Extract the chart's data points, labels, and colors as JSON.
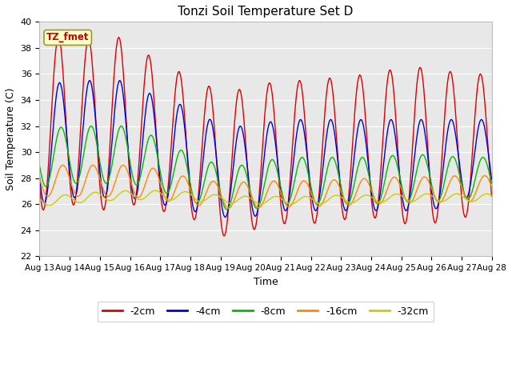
{
  "title": "Tonzi Soil Temperature Set D",
  "xlabel": "Time",
  "ylabel": "Soil Temperature (C)",
  "annotation_text": "TZ_fmet",
  "ylim": [
    22,
    40
  ],
  "series_labels": [
    "-2cm",
    "-4cm",
    "-8cm",
    "-16cm",
    "-32cm"
  ],
  "series_colors": [
    "#dd0000",
    "#0000dd",
    "#00bb00",
    "#ff8800",
    "#cccc00"
  ],
  "x_tick_labels": [
    "Aug 13",
    "Aug 14",
    "Aug 15",
    "Aug 16",
    "Aug 17",
    "Aug 18",
    "Aug 19",
    "Aug 20",
    "Aug 21",
    "Aug 22",
    "Aug 23",
    "Aug 24",
    "Aug 25",
    "Aug 26",
    "Aug 27",
    "Aug 28"
  ],
  "outer_bg": "#ffffff",
  "plot_bg": "#e8e8e8",
  "grid_color": "#ffffff",
  "annotation_bg": "#ffffcc",
  "annotation_border": "#999933",
  "annotation_text_color": "#cc0000"
}
